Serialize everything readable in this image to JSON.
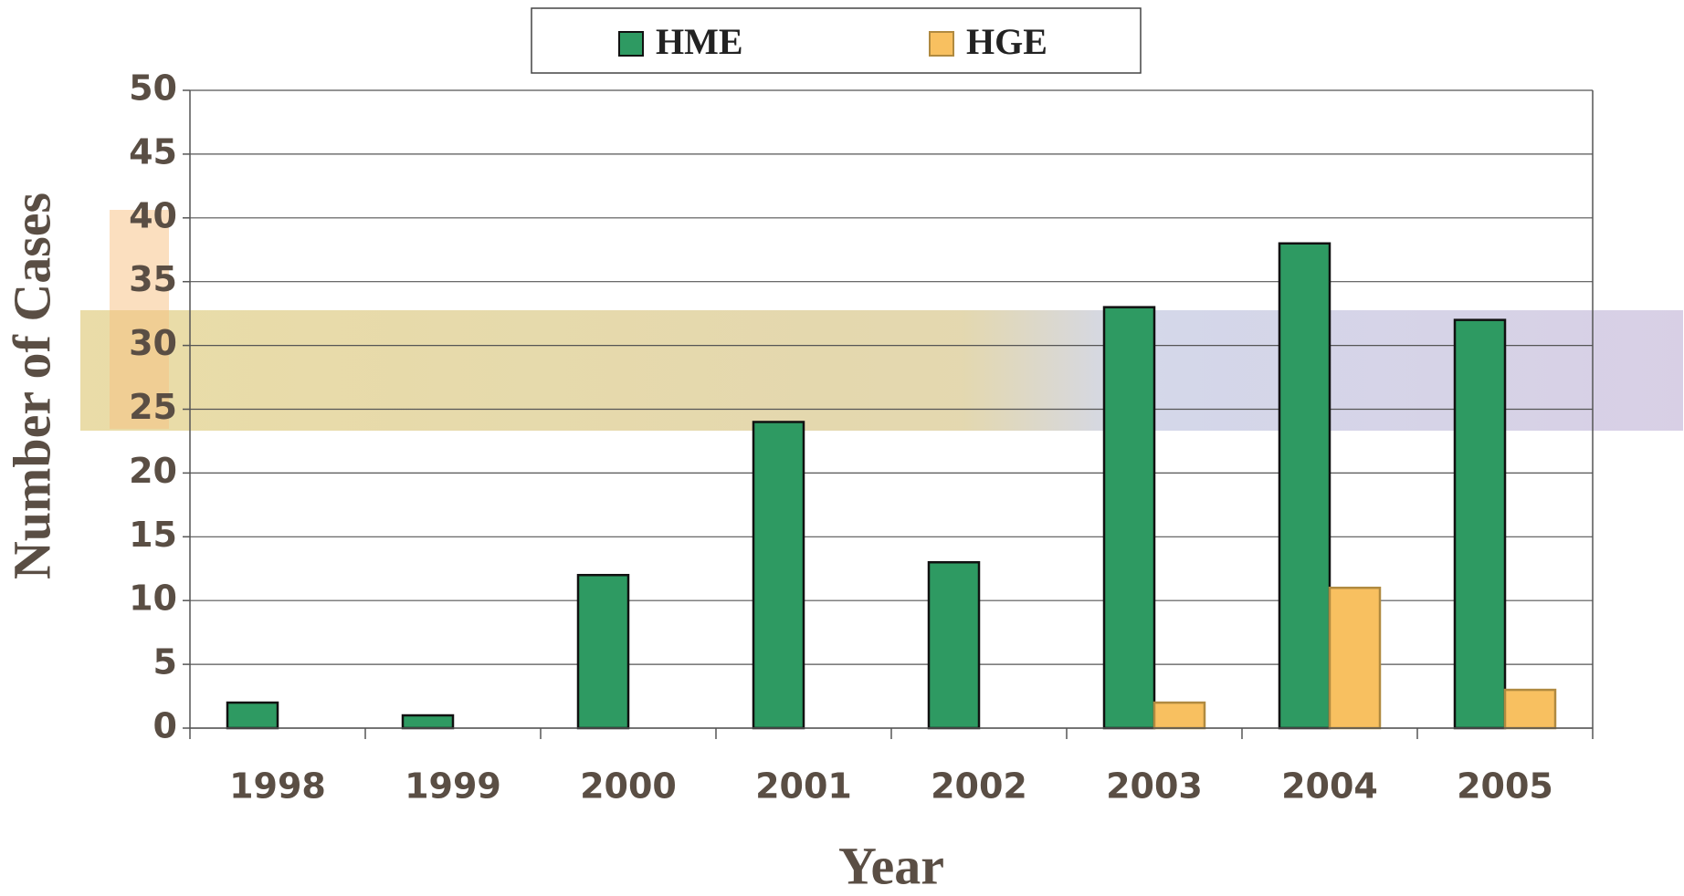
{
  "chart_data": {
    "type": "bar",
    "categories": [
      "1998",
      "1999",
      "2000",
      "2001",
      "2002",
      "2003",
      "2004",
      "2005"
    ],
    "series": [
      {
        "name": "HME",
        "color": "#2e9a62",
        "values": [
          2,
          1,
          12,
          24,
          13,
          33,
          38,
          32
        ]
      },
      {
        "name": "HGE",
        "color": "#f8c060",
        "values": [
          0,
          0,
          0,
          0,
          0,
          2,
          11,
          3
        ]
      }
    ],
    "xlabel": "Year",
    "ylabel": "Number of Cases",
    "ylim": [
      0,
      50
    ],
    "yticks": [
      0,
      5,
      10,
      15,
      20,
      25,
      30,
      35,
      40,
      45,
      50
    ],
    "grid": true,
    "legend": "top"
  }
}
